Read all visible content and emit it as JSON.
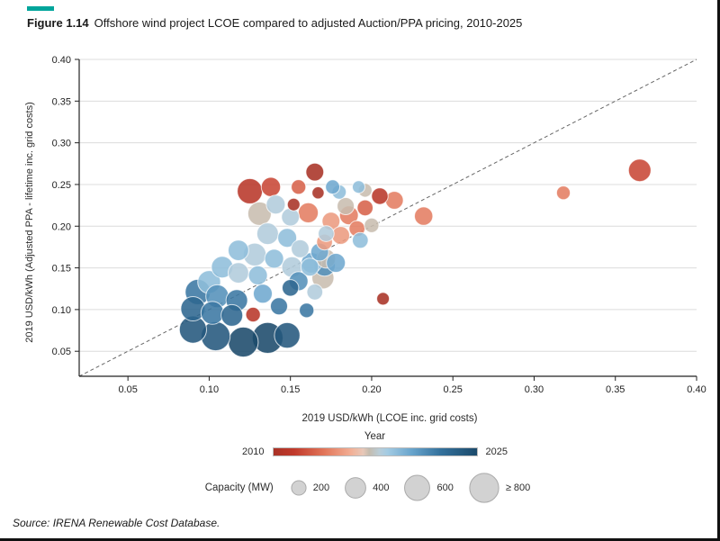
{
  "figure": {
    "label": "Figure 1.14",
    "title": "Offshore wind project LCOE compared to adjusted Auction/PPA pricing, 2010-2025",
    "source": "Source: IRENA Renewable Cost Database.",
    "accent_color": "#00a59b"
  },
  "chart_data": {
    "type": "scatter",
    "title": "Offshore wind project LCOE compared to adjusted Auction/PPA pricing, 2010-2025",
    "xlabel": "2019 USD/kWh (LCOE inc. grid costs)",
    "ylabel": "2019 USD/kWh (Adjusted PPA - lifetime inc. grid costs)",
    "xlim": [
      0.02,
      0.4
    ],
    "ylim": [
      0.02,
      0.4
    ],
    "xticks": [
      0.05,
      0.1,
      0.15,
      0.2,
      0.25,
      0.3,
      0.35,
      0.4
    ],
    "yticks": [
      0.05,
      0.1,
      0.15,
      0.2,
      0.25,
      0.3,
      0.35,
      0.4
    ],
    "grid": "horizontal",
    "identity_line": true,
    "legend_position": "bottom",
    "color_scale": {
      "label": "Year",
      "min": 2010,
      "max": 2025,
      "stops": [
        {
          "t": 0.0,
          "color": "#a93226"
        },
        {
          "t": 0.1,
          "color": "#c0392b"
        },
        {
          "t": 0.25,
          "color": "#e2765a"
        },
        {
          "t": 0.38,
          "color": "#f2af95"
        },
        {
          "t": 0.44,
          "color": "#e8c8b8"
        },
        {
          "t": 0.47,
          "color": "#c4bcae"
        },
        {
          "t": 0.52,
          "color": "#b9cdd8"
        },
        {
          "t": 0.56,
          "color": "#a3cbe3"
        },
        {
          "t": 0.68,
          "color": "#68a4cc"
        },
        {
          "t": 0.82,
          "color": "#34719c"
        },
        {
          "t": 1.0,
          "color": "#1b4a6b"
        }
      ]
    },
    "size_scale": {
      "label": "Capacity (MW)",
      "values": [
        200,
        400,
        600,
        800
      ],
      "labels": [
        "200",
        "400",
        "600",
        "≥ 800"
      ]
    },
    "points": [
      {
        "x": 0.165,
        "y": 0.265,
        "year": 2010,
        "capacity": 300
      },
      {
        "x": 0.152,
        "y": 0.226,
        "year": 2010,
        "capacity": 150
      },
      {
        "x": 0.167,
        "y": 0.24,
        "year": 2010,
        "capacity": 140
      },
      {
        "x": 0.207,
        "y": 0.113,
        "year": 2010,
        "capacity": 150
      },
      {
        "x": 0.125,
        "y": 0.242,
        "year": 2011,
        "capacity": 600
      },
      {
        "x": 0.205,
        "y": 0.236,
        "year": 2011,
        "capacity": 260
      },
      {
        "x": 0.127,
        "y": 0.094,
        "year": 2011,
        "capacity": 200
      },
      {
        "x": 0.138,
        "y": 0.247,
        "year": 2012,
        "capacity": 350
      },
      {
        "x": 0.365,
        "y": 0.267,
        "year": 2012,
        "capacity": 480
      },
      {
        "x": 0.196,
        "y": 0.222,
        "year": 2013,
        "capacity": 240
      },
      {
        "x": 0.155,
        "y": 0.247,
        "year": 2013,
        "capacity": 200
      },
      {
        "x": 0.318,
        "y": 0.24,
        "year": 2014,
        "capacity": 180
      },
      {
        "x": 0.214,
        "y": 0.231,
        "year": 2014,
        "capacity": 300
      },
      {
        "x": 0.232,
        "y": 0.212,
        "year": 2014,
        "capacity": 320
      },
      {
        "x": 0.186,
        "y": 0.213,
        "year": 2014,
        "capacity": 330
      },
      {
        "x": 0.191,
        "y": 0.197,
        "year": 2014,
        "capacity": 240
      },
      {
        "x": 0.161,
        "y": 0.216,
        "year": 2014,
        "capacity": 380
      },
      {
        "x": 0.175,
        "y": 0.206,
        "year": 2015,
        "capacity": 300
      },
      {
        "x": 0.181,
        "y": 0.189,
        "year": 2015,
        "capacity": 300
      },
      {
        "x": 0.171,
        "y": 0.181,
        "year": 2015,
        "capacity": 240
      },
      {
        "x": 0.131,
        "y": 0.215,
        "year": 2017,
        "capacity": 520
      },
      {
        "x": 0.17,
        "y": 0.138,
        "year": 2017,
        "capacity": 460
      },
      {
        "x": 0.184,
        "y": 0.224,
        "year": 2017,
        "capacity": 280
      },
      {
        "x": 0.172,
        "y": 0.161,
        "year": 2017,
        "capacity": 340
      },
      {
        "x": 0.196,
        "y": 0.243,
        "year": 2017,
        "capacity": 180
      },
      {
        "x": 0.2,
        "y": 0.201,
        "year": 2017,
        "capacity": 200
      },
      {
        "x": 0.141,
        "y": 0.226,
        "year": 2018,
        "capacity": 340
      },
      {
        "x": 0.15,
        "y": 0.211,
        "year": 2018,
        "capacity": 300
      },
      {
        "x": 0.136,
        "y": 0.191,
        "year": 2018,
        "capacity": 440
      },
      {
        "x": 0.156,
        "y": 0.173,
        "year": 2018,
        "capacity": 300
      },
      {
        "x": 0.128,
        "y": 0.166,
        "year": 2018,
        "capacity": 500
      },
      {
        "x": 0.151,
        "y": 0.151,
        "year": 2018,
        "capacity": 400
      },
      {
        "x": 0.118,
        "y": 0.144,
        "year": 2018,
        "capacity": 400
      },
      {
        "x": 0.172,
        "y": 0.191,
        "year": 2018,
        "capacity": 240
      },
      {
        "x": 0.165,
        "y": 0.121,
        "year": 2018,
        "capacity": 240
      },
      {
        "x": 0.148,
        "y": 0.186,
        "year": 2019,
        "capacity": 340
      },
      {
        "x": 0.118,
        "y": 0.171,
        "year": 2019,
        "capacity": 400
      },
      {
        "x": 0.14,
        "y": 0.161,
        "year": 2019,
        "capacity": 340
      },
      {
        "x": 0.162,
        "y": 0.151,
        "year": 2019,
        "capacity": 300
      },
      {
        "x": 0.108,
        "y": 0.151,
        "year": 2019,
        "capacity": 440
      },
      {
        "x": 0.13,
        "y": 0.141,
        "year": 2019,
        "capacity": 340
      },
      {
        "x": 0.1,
        "y": 0.133,
        "year": 2019,
        "capacity": 500
      },
      {
        "x": 0.18,
        "y": 0.241,
        "year": 2019,
        "capacity": 190
      },
      {
        "x": 0.192,
        "y": 0.247,
        "year": 2019,
        "capacity": 150
      },
      {
        "x": 0.193,
        "y": 0.183,
        "year": 2019,
        "capacity": 240
      },
      {
        "x": 0.163,
        "y": 0.156,
        "year": 2020,
        "capacity": 400
      },
      {
        "x": 0.178,
        "y": 0.156,
        "year": 2020,
        "capacity": 340
      },
      {
        "x": 0.168,
        "y": 0.169,
        "year": 2020,
        "capacity": 300
      },
      {
        "x": 0.133,
        "y": 0.119,
        "year": 2020,
        "capacity": 340
      },
      {
        "x": 0.176,
        "y": 0.247,
        "year": 2020,
        "capacity": 190
      },
      {
        "x": 0.105,
        "y": 0.116,
        "year": 2021,
        "capacity": 500
      },
      {
        "x": 0.155,
        "y": 0.134,
        "year": 2021,
        "capacity": 340
      },
      {
        "x": 0.171,
        "y": 0.153,
        "year": 2021,
        "capacity": 440
      },
      {
        "x": 0.093,
        "y": 0.121,
        "year": 2022,
        "capacity": 600
      },
      {
        "x": 0.117,
        "y": 0.111,
        "year": 2022,
        "capacity": 440
      },
      {
        "x": 0.102,
        "y": 0.096,
        "year": 2022,
        "capacity": 500
      },
      {
        "x": 0.143,
        "y": 0.104,
        "year": 2022,
        "capacity": 280
      },
      {
        "x": 0.16,
        "y": 0.099,
        "year": 2022,
        "capacity": 200
      },
      {
        "x": 0.09,
        "y": 0.101,
        "year": 2023,
        "capacity": 560
      },
      {
        "x": 0.114,
        "y": 0.093,
        "year": 2023,
        "capacity": 440
      },
      {
        "x": 0.15,
        "y": 0.126,
        "year": 2023,
        "capacity": 260
      },
      {
        "x": 0.09,
        "y": 0.076,
        "year": 2024,
        "capacity": 700
      },
      {
        "x": 0.104,
        "y": 0.068,
        "year": 2024,
        "capacity": 800
      },
      {
        "x": 0.148,
        "y": 0.069,
        "year": 2024,
        "capacity": 620
      },
      {
        "x": 0.121,
        "y": 0.061,
        "year": 2025,
        "capacity": 850
      },
      {
        "x": 0.136,
        "y": 0.066,
        "year": 2025,
        "capacity": 900
      }
    ]
  }
}
